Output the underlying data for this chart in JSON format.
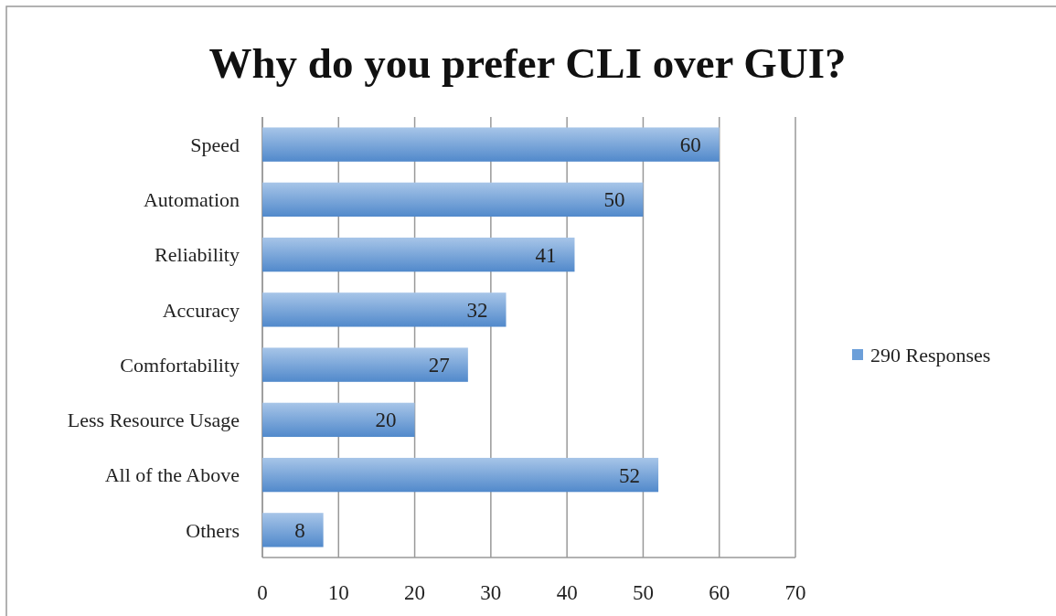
{
  "chart_data": {
    "type": "bar",
    "orientation": "horizontal",
    "title": "Why do you prefer CLI over GUI?",
    "categories": [
      "Speed",
      "Automation",
      "Reliability",
      "Accuracy",
      "Comfortability",
      "Less Resource Usage",
      "All of the Above",
      "Others"
    ],
    "series": [
      {
        "name": "290 Responses",
        "color": "#6c9fd9",
        "values": [
          60,
          50,
          41,
          32,
          27,
          20,
          52,
          8
        ]
      }
    ],
    "xlim": [
      0,
      70
    ],
    "xticks": [
      0,
      10,
      20,
      30,
      40,
      50,
      60,
      70
    ],
    "grid": "x",
    "legend": "right",
    "data_labels": true
  }
}
